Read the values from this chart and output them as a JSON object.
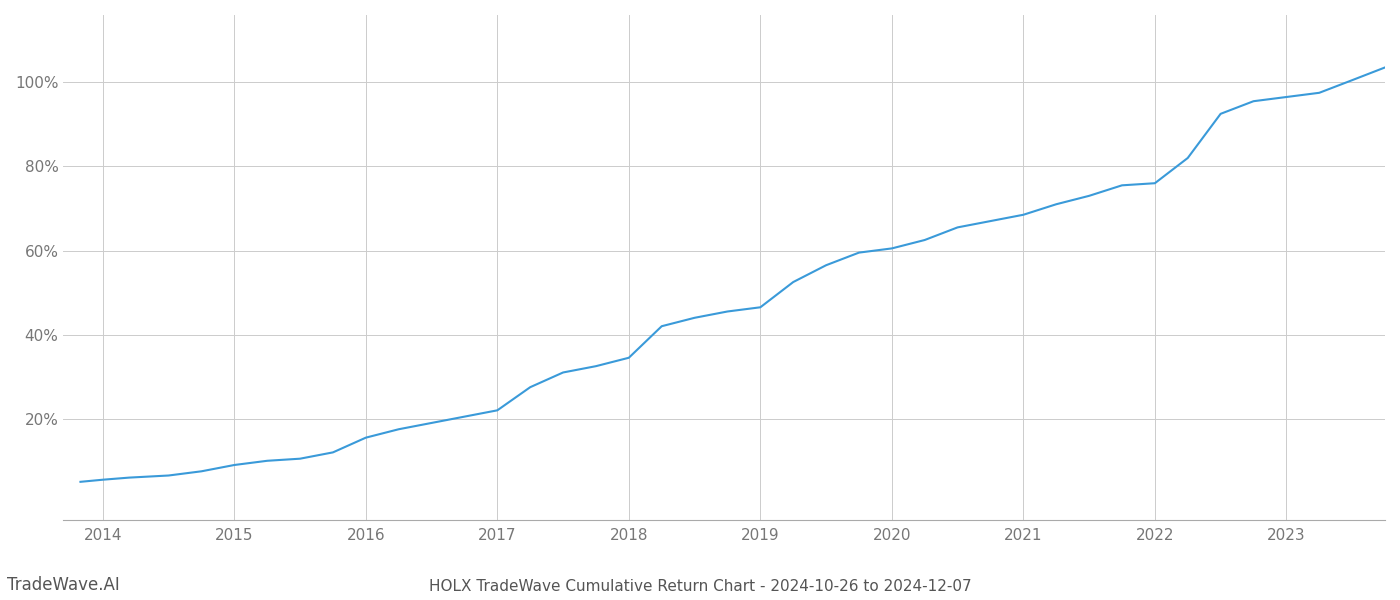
{
  "title": "HOLX TradeWave Cumulative Return Chart - 2024-10-26 to 2024-12-07",
  "watermark": "TradeWave.AI",
  "line_color": "#3a9ad9",
  "background_color": "#ffffff",
  "grid_color": "#cccccc",
  "x_years": [
    2014,
    2015,
    2016,
    2017,
    2018,
    2019,
    2020,
    2021,
    2022,
    2023
  ],
  "y_tick_vals": [
    0.2,
    0.4,
    0.6,
    0.8,
    1.0
  ],
  "y_tick_labels": [
    "20%",
    "40%",
    "60%",
    "80%",
    "100%"
  ],
  "xlim": [
    2013.7,
    2023.75
  ],
  "ylim": [
    -0.04,
    1.16
  ],
  "data_x": [
    2013.83,
    2014.0,
    2014.2,
    2014.5,
    2014.75,
    2015.0,
    2015.25,
    2015.5,
    2015.75,
    2016.0,
    2016.25,
    2016.5,
    2016.75,
    2017.0,
    2017.25,
    2017.5,
    2017.75,
    2018.0,
    2018.25,
    2018.5,
    2018.75,
    2019.0,
    2019.25,
    2019.5,
    2019.75,
    2020.0,
    2020.25,
    2020.5,
    2020.75,
    2021.0,
    2021.25,
    2021.5,
    2021.75,
    2022.0,
    2022.25,
    2022.5,
    2022.75,
    2023.0,
    2023.25,
    2023.5,
    2023.83
  ],
  "data_y": [
    0.05,
    0.055,
    0.06,
    0.065,
    0.075,
    0.09,
    0.1,
    0.105,
    0.12,
    0.155,
    0.175,
    0.19,
    0.205,
    0.22,
    0.275,
    0.31,
    0.325,
    0.345,
    0.42,
    0.44,
    0.455,
    0.465,
    0.525,
    0.565,
    0.595,
    0.605,
    0.625,
    0.655,
    0.67,
    0.685,
    0.71,
    0.73,
    0.755,
    0.76,
    0.82,
    0.925,
    0.955,
    0.965,
    0.975,
    1.005,
    1.045
  ],
  "title_fontsize": 11,
  "tick_fontsize": 11,
  "watermark_fontsize": 12,
  "line_width": 1.5
}
